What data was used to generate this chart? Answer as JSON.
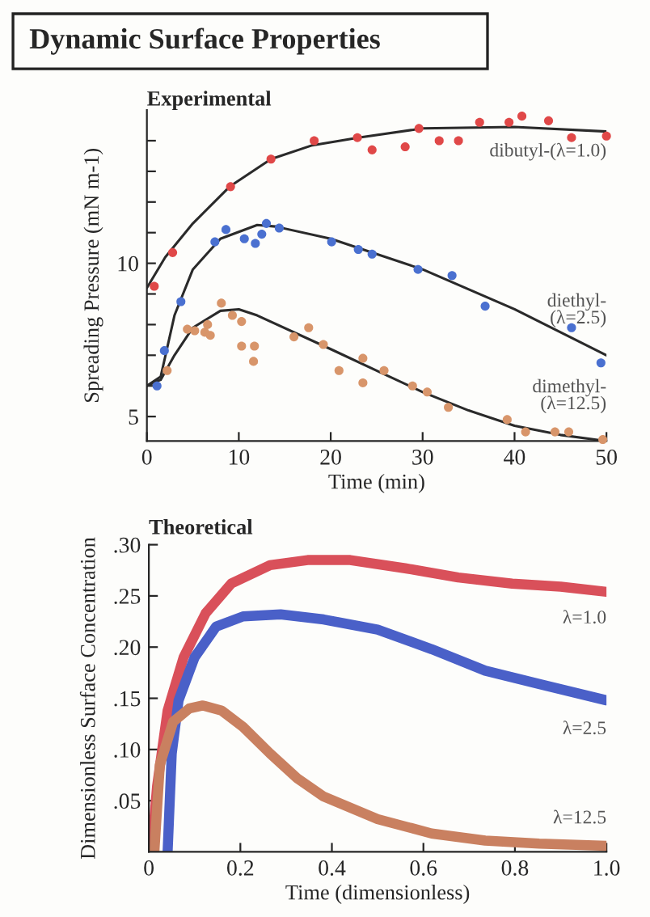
{
  "chart_data": [
    {
      "type": "scatter",
      "title": "Dynamic Surface Properties",
      "subtitle": "Experimental",
      "xlabel": "Time (min)",
      "ylabel": "Spreading Pressure (mN m-1)",
      "xlim": [
        0,
        50
      ],
      "xticks": [
        0,
        10,
        20,
        30,
        40,
        50
      ],
      "ylim": [
        4.2,
        15
      ],
      "yticks": [
        5,
        {
          "value": 6,
          "label": null
        },
        {
          "value": 7,
          "label": null
        },
        {
          "value": 8,
          "label": null
        },
        {
          "value": 9,
          "label": null
        },
        10,
        {
          "value": 11,
          "label": null
        },
        {
          "value": 12,
          "label": null
        },
        {
          "value": 13,
          "label": null
        },
        {
          "value": 14,
          "label": null
        }
      ],
      "grid": false,
      "marker": "circle",
      "series": [
        {
          "type": "scatter",
          "color": "#e04848",
          "x": [
            0.8,
            2.8,
            9.1,
            13.5,
            18.2,
            22.9,
            24.5,
            28.1,
            29.6,
            31.8,
            33.9,
            36.2,
            39.4,
            40.8,
            43.7,
            46.2,
            50.0
          ],
          "values": [
            9.25,
            10.35,
            12.5,
            13.4,
            14.0,
            14.1,
            13.7,
            13.8,
            14.4,
            14.0,
            14.0,
            14.6,
            14.6,
            14.8,
            14.65,
            14.1,
            14.15
          ]
        },
        {
          "type": "scatter",
          "color": "#4a70d0",
          "x": [
            1.1,
            1.9,
            3.7,
            7.4,
            8.6,
            10.6,
            11.8,
            12.5,
            13.0,
            14.4,
            20.1,
            23.0,
            24.5,
            29.5,
            33.2,
            36.8,
            46.2,
            49.4
          ],
          "values": [
            6.0,
            7.15,
            8.75,
            10.7,
            11.1,
            10.8,
            10.65,
            10.95,
            11.3,
            11.15,
            10.7,
            10.45,
            10.3,
            9.8,
            9.6,
            8.6,
            7.9,
            6.75
          ]
        },
        {
          "type": "scatter",
          "color": "#d8956a",
          "x": [
            2.2,
            4.4,
            5.2,
            6.3,
            6.6,
            6.9,
            8.1,
            9.3,
            10.3,
            10.3,
            11.7,
            11.6,
            16.0,
            17.6,
            19.2,
            20.9,
            23.5,
            23.5,
            25.8,
            28.9,
            30.5,
            32.8,
            39.2,
            41.2,
            44.4,
            45.9,
            49.6
          ],
          "values": [
            6.5,
            7.85,
            7.8,
            7.75,
            8.0,
            7.65,
            8.7,
            8.3,
            8.1,
            7.3,
            7.3,
            6.8,
            7.6,
            7.9,
            7.35,
            6.5,
            6.9,
            6.1,
            6.5,
            6.0,
            5.8,
            5.3,
            4.9,
            4.5,
            4.5,
            4.5,
            4.25
          ]
        },
        {
          "type": "line",
          "name": "dibutyl-(λ=1.0)",
          "color": "#2a2a2a",
          "marker": "none",
          "line_style": "solid",
          "x": [
            0,
            2,
            5,
            9,
            13.5,
            18,
            23,
            30,
            40,
            50
          ],
          "values": [
            9.2,
            10.2,
            11.3,
            12.5,
            13.4,
            13.85,
            14.1,
            14.4,
            14.45,
            14.3
          ]
        },
        {
          "type": "line",
          "name": "diethyl-\n(λ=2.5)",
          "color": "#2a2a2a",
          "marker": "none",
          "line_style": "solid",
          "x": [
            0,
            1.5,
            3,
            5,
            8,
            12,
            14,
            20,
            30,
            40,
            50
          ],
          "values": [
            6.0,
            6.3,
            8.3,
            9.8,
            10.8,
            11.25,
            11.2,
            10.8,
            9.8,
            8.5,
            7.0
          ]
        },
        {
          "type": "line",
          "name": "dimethyl-\n(λ=12.5)",
          "color": "#2a2a2a",
          "marker": "none",
          "line_style": "solid",
          "x": [
            0,
            1.5,
            3,
            5,
            8,
            10,
            12,
            20,
            25,
            30,
            35,
            40,
            45,
            50
          ],
          "values": [
            6.0,
            6.2,
            7.0,
            7.9,
            8.45,
            8.5,
            8.3,
            7.2,
            6.5,
            5.8,
            5.2,
            4.7,
            4.4,
            4.2
          ]
        }
      ]
    },
    {
      "type": "line",
      "title": "Theoretical",
      "xlabel": "Time (dimensionless)",
      "ylabel": "Dimensionless Surface Concentration",
      "xlim": [
        0,
        1
      ],
      "xticks": [
        0,
        0.2,
        0.4,
        0.6,
        0.8,
        {
          "value": 1,
          "label": "1.0"
        }
      ],
      "ylim": [
        0,
        0.3
      ],
      "yticks": [
        {
          "value": 0.05,
          "label": ".05"
        },
        {
          "value": 0.1,
          "label": ".10"
        },
        {
          "value": 0.15,
          "label": ".15"
        },
        {
          "value": 0.2,
          "label": ".20"
        },
        {
          "value": 0.25,
          "label": ".25"
        },
        {
          "value": 0.3,
          "label": ".30"
        }
      ],
      "grid": false,
      "marker": "none",
      "line_style": "solid",
      "series": [
        {
          "name": "λ=1.0",
          "color": "#d9505a",
          "x": [
            0.006,
            0.018,
            0.041,
            0.076,
            0.124,
            0.18,
            0.265,
            0.347,
            0.44,
            0.56,
            0.676,
            0.794,
            0.9,
            1.0
          ],
          "values": [
            0,
            0.064,
            0.138,
            0.19,
            0.233,
            0.262,
            0.28,
            0.285,
            0.285,
            0.277,
            0.268,
            0.262,
            0.259,
            0.254
          ]
        },
        {
          "name": "λ=2.5",
          "color": "#4a60c8",
          "x": [
            0.041,
            0.05,
            0.065,
            0.1,
            0.147,
            0.206,
            0.288,
            0.382,
            0.5,
            0.618,
            0.735,
            0.853,
            1.0
          ],
          "values": [
            0,
            0.096,
            0.148,
            0.19,
            0.22,
            0.23,
            0.232,
            0.227,
            0.217,
            0.198,
            0.177,
            0.164,
            0.148
          ]
        },
        {
          "name": "λ=12.5",
          "color": "#c98060",
          "x": [
            0.012,
            0.024,
            0.053,
            0.088,
            0.118,
            0.159,
            0.206,
            0.265,
            0.324,
            0.382,
            0.5,
            0.618,
            0.735,
            0.853,
            1.0
          ],
          "values": [
            0,
            0.085,
            0.127,
            0.14,
            0.143,
            0.138,
            0.122,
            0.096,
            0.072,
            0.054,
            0.032,
            0.018,
            0.011,
            0.008,
            0.006
          ]
        }
      ]
    }
  ]
}
